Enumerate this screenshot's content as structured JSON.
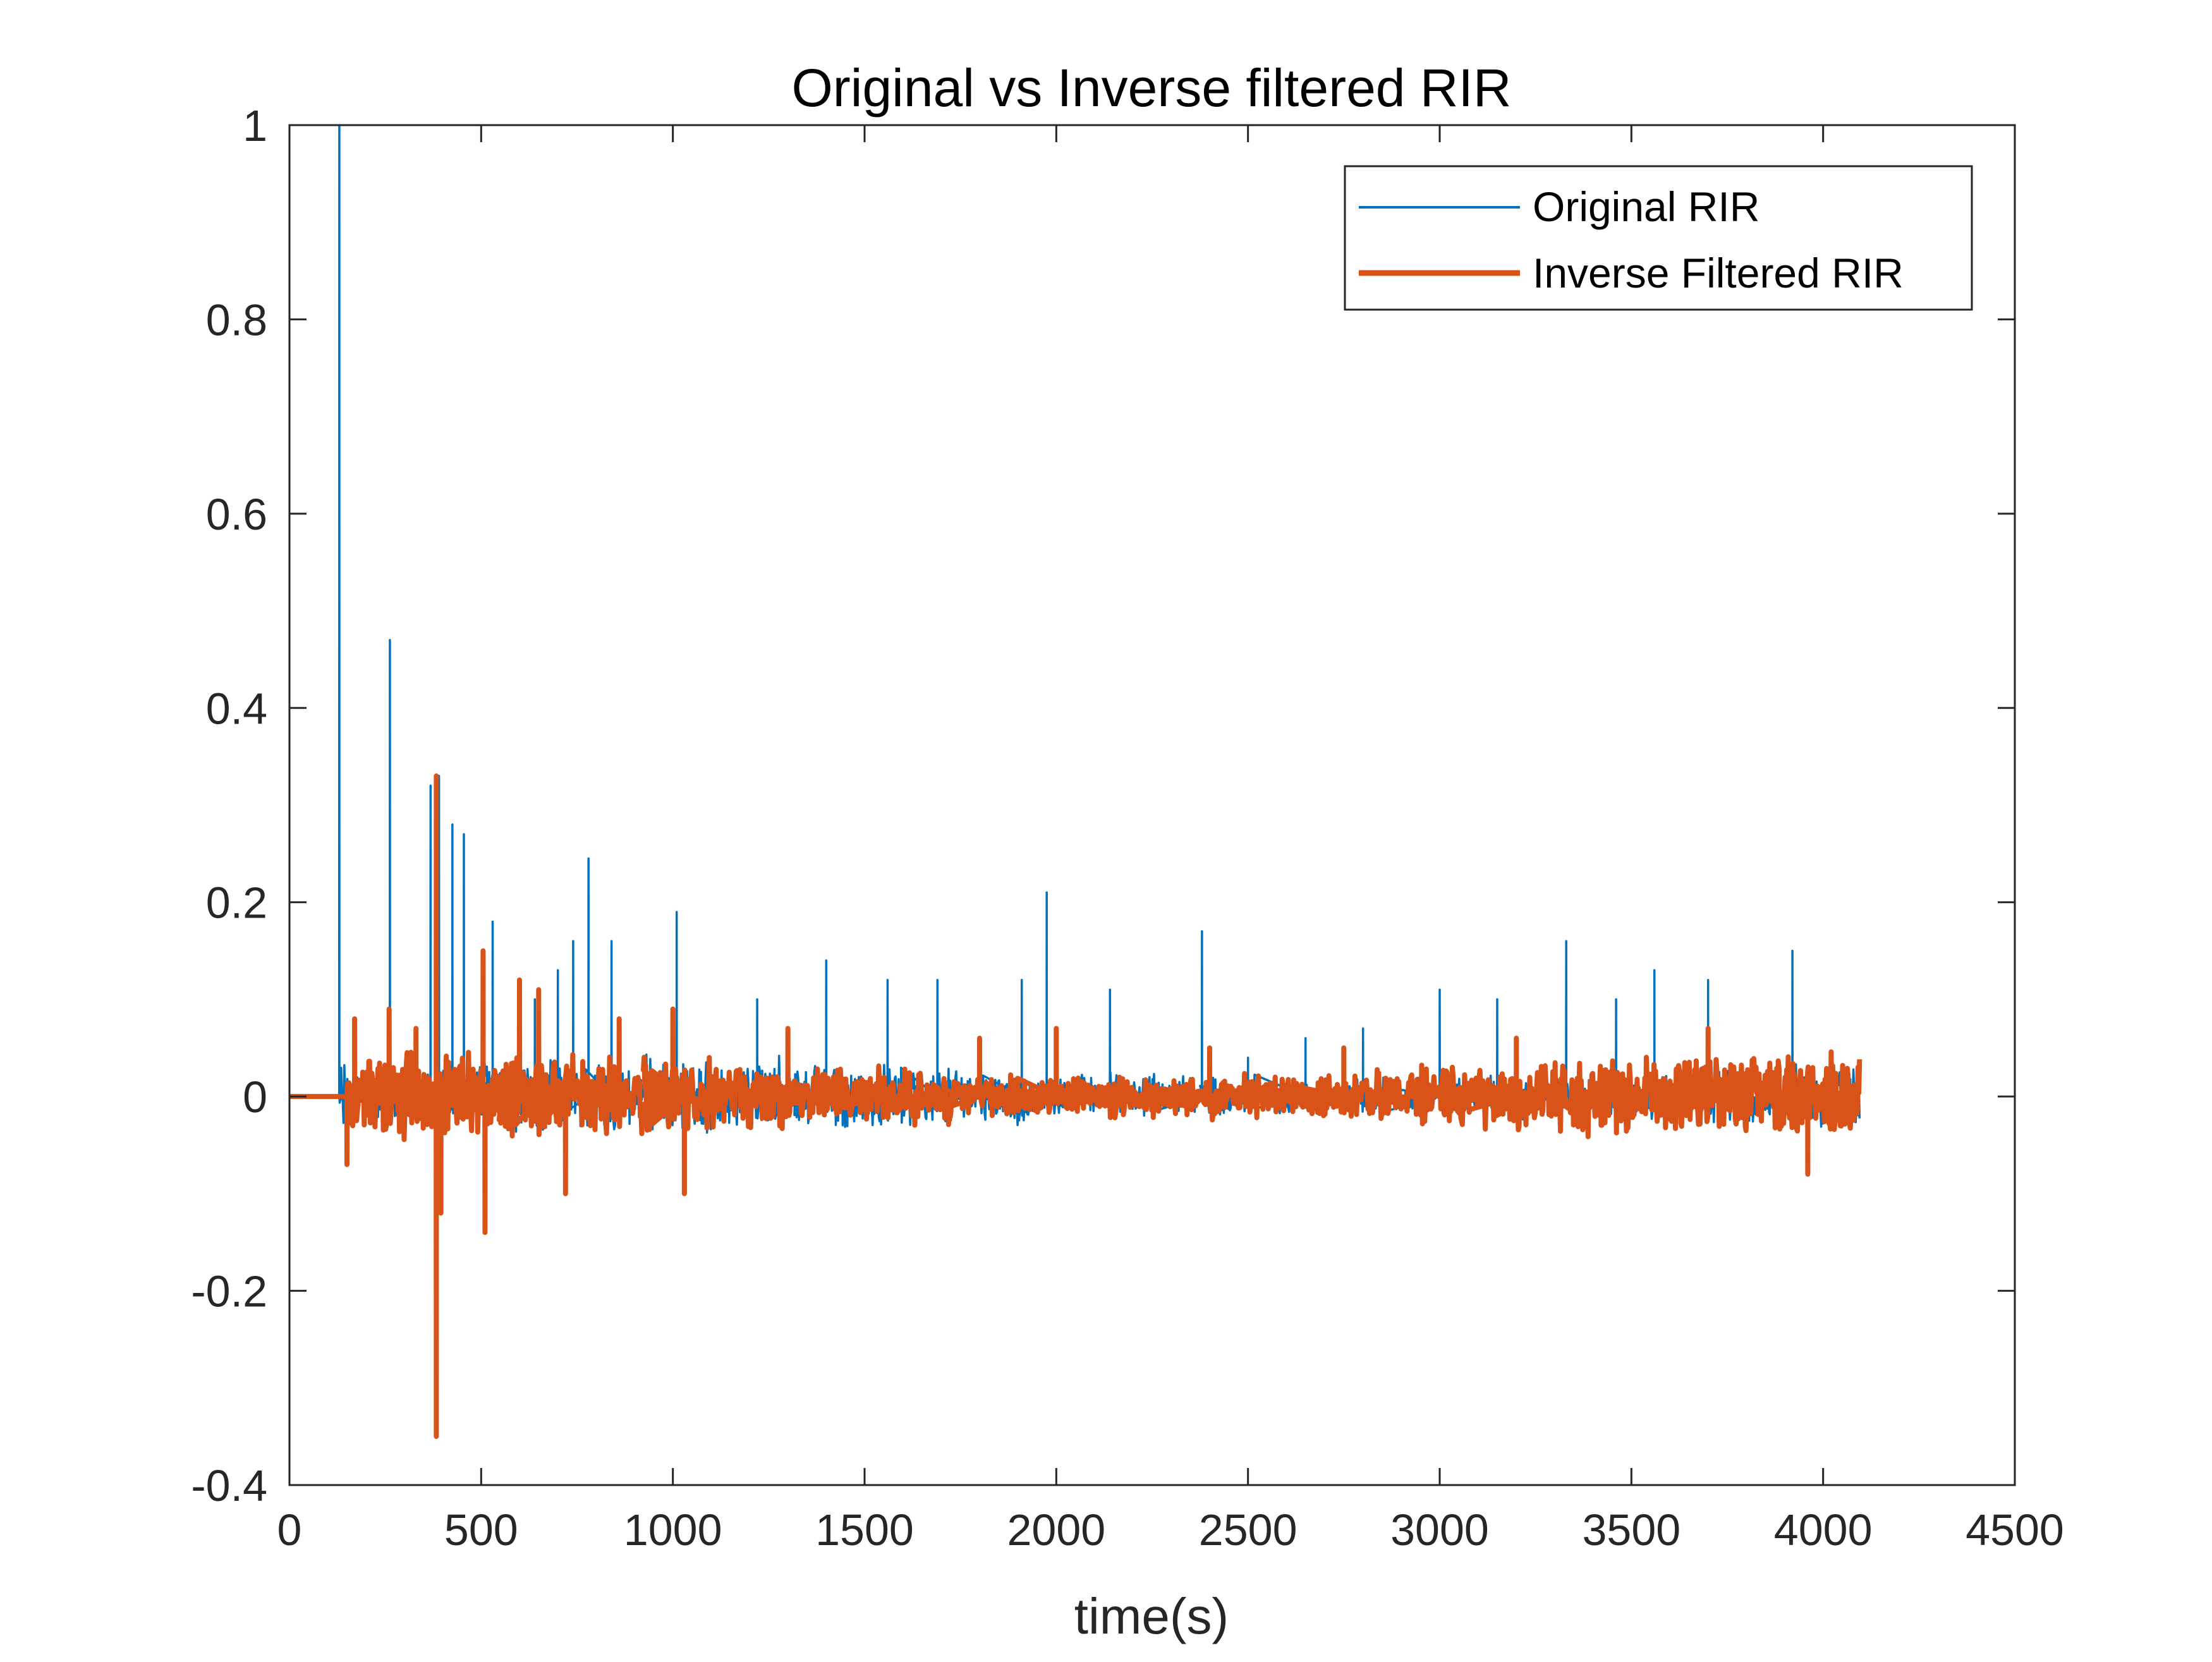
{
  "chart_data": {
    "type": "line",
    "title": "Original vs Inverse filtered RIR",
    "xlabel": "time(s)",
    "ylabel": "",
    "xlim": [
      0,
      4500
    ],
    "ylim": [
      -0.4,
      1
    ],
    "xticks": [
      0,
      500,
      1000,
      1500,
      2000,
      2500,
      3000,
      3500,
      4000,
      4500
    ],
    "yticks": [
      -0.4,
      -0.2,
      0,
      0.2,
      0.4,
      0.6,
      0.8,
      1
    ],
    "xtick_labels": [
      "0",
      "500",
      "1000",
      "1500",
      "2000",
      "2500",
      "3000",
      "3500",
      "4000",
      "4500"
    ],
    "ytick_labels": [
      "-0.4",
      "-0.2",
      "0",
      "0.2",
      "0.4",
      "0.6",
      "0.8",
      "1"
    ],
    "grid": false,
    "legend_position": "top-right",
    "series": [
      {
        "name": "Original RIR",
        "color": "#0072BD",
        "x_range": [
          1,
          4096
        ],
        "baseline": 0,
        "noise_amplitude": 0.03,
        "spikes": [
          [
            130,
            1.0
          ],
          [
            262,
            0.47
          ],
          [
            368,
            0.32
          ],
          [
            390,
            0.33
          ],
          [
            425,
            0.28
          ],
          [
            455,
            0.27
          ],
          [
            530,
            0.18
          ],
          [
            640,
            0.1
          ],
          [
            700,
            0.13
          ],
          [
            740,
            0.16
          ],
          [
            780,
            0.245
          ],
          [
            840,
            0.16
          ],
          [
            1010,
            0.19
          ],
          [
            1220,
            0.1
          ],
          [
            1400,
            0.14
          ],
          [
            1560,
            0.12
          ],
          [
            1690,
            0.12
          ],
          [
            1910,
            0.12
          ],
          [
            1975,
            0.21
          ],
          [
            2140,
            0.11
          ],
          [
            2380,
            0.17
          ],
          [
            2500,
            0.04
          ],
          [
            2650,
            0.06
          ],
          [
            2800,
            0.07
          ],
          [
            3000,
            0.11
          ],
          [
            3150,
            0.1
          ],
          [
            3330,
            0.16
          ],
          [
            3460,
            0.1
          ],
          [
            3560,
            0.13
          ],
          [
            3700,
            0.12
          ],
          [
            3920,
            0.15
          ]
        ]
      },
      {
        "name": "Inverse Filtered RIR",
        "color": "#D95319",
        "x_range": [
          1,
          4096
        ],
        "baseline": 0,
        "noise_amplitude": 0.035,
        "spikes": [
          [
            150,
            -0.07
          ],
          [
            170,
            0.08
          ],
          [
            260,
            0.09
          ],
          [
            330,
            0.07
          ],
          [
            383,
            0.33
          ],
          [
            383,
            -0.35
          ],
          [
            395,
            -0.12
          ],
          [
            505,
            0.15
          ],
          [
            510,
            -0.14
          ],
          [
            600,
            0.12
          ],
          [
            650,
            0.11
          ],
          [
            720,
            -0.1
          ],
          [
            860,
            0.08
          ],
          [
            1000,
            0.09
          ],
          [
            1030,
            -0.1
          ],
          [
            1300,
            0.07
          ],
          [
            1800,
            0.06
          ],
          [
            2000,
            0.07
          ],
          [
            2400,
            0.05
          ],
          [
            2750,
            0.05
          ],
          [
            3200,
            0.06
          ],
          [
            3700,
            0.07
          ],
          [
            3960,
            -0.08
          ]
        ]
      }
    ]
  }
}
